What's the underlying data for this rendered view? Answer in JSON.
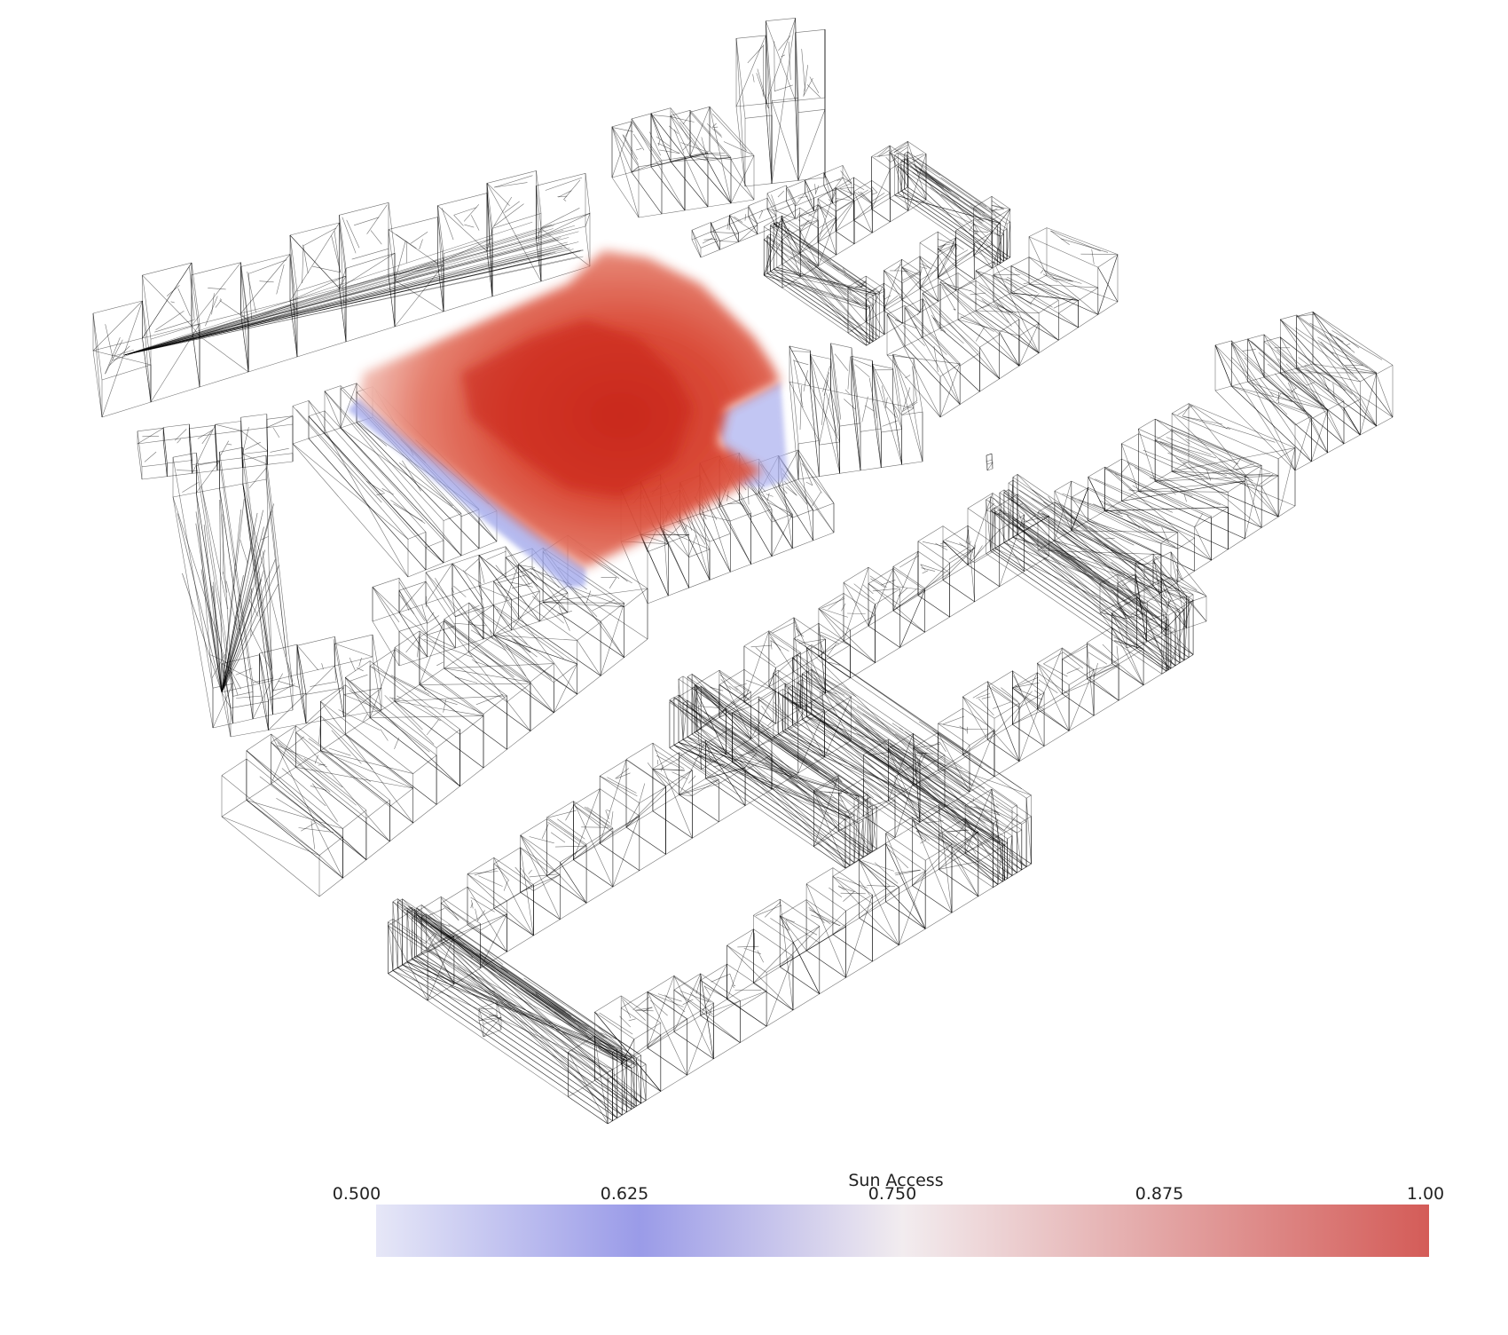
{
  "legend": {
    "title": "Sun Access",
    "ticks": [
      "0.500",
      "0.625",
      "0.750",
      "0.875",
      "1.00"
    ],
    "range": [
      0.5,
      1.0
    ],
    "colors": {
      "low": "#9a9be8",
      "mid": "#f2ecef",
      "high": "#d45c58"
    }
  },
  "scene": {
    "description_colors": {
      "wire": "#000000",
      "heat_core": "#cc2a1a",
      "heat_edge": "#e8897a",
      "shadow_edge": "#aab0ee"
    }
  }
}
